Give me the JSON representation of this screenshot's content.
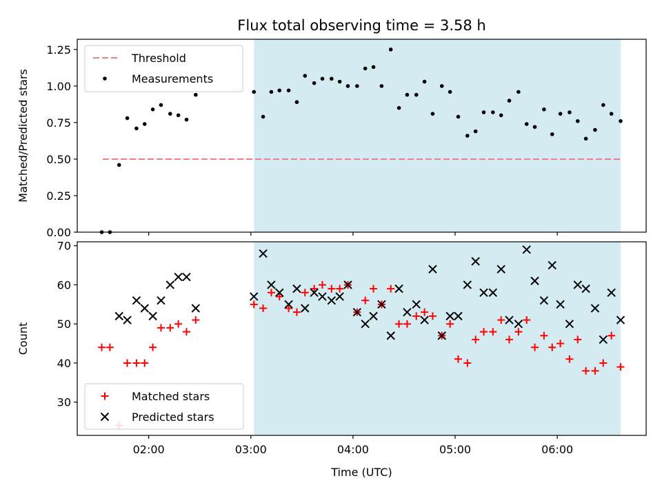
{
  "chart_data": {
    "type": "scatter",
    "title": "Flux total observing time = 3.58 h",
    "xlabel": "Time (UTC)",
    "x_ticks": [
      "02:00",
      "03:00",
      "04:00",
      "05:00",
      "06:00"
    ],
    "x_tick_values": [
      2.0,
      3.0,
      4.0,
      5.0,
      6.0
    ],
    "xlim": [
      1.3,
      6.87
    ],
    "shaded_region": {
      "x_start": 3.03,
      "x_end": 6.62,
      "color": "#d4ebf1"
    },
    "panels": [
      {
        "ylabel": "Matched/Predicted stars",
        "ylim": [
          0.0,
          1.32
        ],
        "y_ticks": [
          0.0,
          0.25,
          0.5,
          0.75,
          1.0,
          1.25
        ],
        "y_tick_labels": [
          "0.00",
          "0.25",
          "0.50",
          "0.75",
          "1.00",
          "1.25"
        ],
        "legend_placement": "top-left",
        "series": [
          {
            "name": "Threshold",
            "kind": "dashed-line",
            "color": "#f08080",
            "x": [
              1.55,
              6.62
            ],
            "y": [
              0.5,
              0.5
            ]
          },
          {
            "name": "Measurements",
            "kind": "dot",
            "color": "#000000",
            "x": [
              1.54,
              1.62,
              1.71,
              1.79,
              1.88,
              1.96,
              2.04,
              2.12,
              2.21,
              2.29,
              2.37,
              2.46,
              3.03,
              3.12,
              3.2,
              3.28,
              3.37,
              3.45,
              3.53,
              3.62,
              3.7,
              3.79,
              3.87,
              3.95,
              4.04,
              4.12,
              4.2,
              4.28,
              4.37,
              4.45,
              4.53,
              4.62,
              4.7,
              4.78,
              4.87,
              4.95,
              5.03,
              5.12,
              5.2,
              5.28,
              5.37,
              5.45,
              5.53,
              5.62,
              5.7,
              5.78,
              5.87,
              5.95,
              6.03,
              6.12,
              6.2,
              6.28,
              6.37,
              6.45,
              6.53,
              6.62
            ],
            "y": [
              0.0,
              0.0,
              0.46,
              0.78,
              0.71,
              0.74,
              0.84,
              0.87,
              0.81,
              0.8,
              0.77,
              0.94,
              0.96,
              0.79,
              0.96,
              0.97,
              0.97,
              0.89,
              1.07,
              1.02,
              1.05,
              1.05,
              1.03,
              1.0,
              1.0,
              1.12,
              1.13,
              1.0,
              1.25,
              0.85,
              0.94,
              0.94,
              1.03,
              0.81,
              1.0,
              0.96,
              0.79,
              0.66,
              0.69,
              0.82,
              0.82,
              0.8,
              0.9,
              0.96,
              0.74,
              0.72,
              0.84,
              0.67,
              0.81,
              0.82,
              0.76,
              0.64,
              0.7,
              0.87,
              0.81,
              0.76
            ]
          }
        ]
      },
      {
        "ylabel": "Count",
        "ylim": [
          21.5,
          71.0
        ],
        "y_ticks": [
          30,
          40,
          50,
          60,
          70
        ],
        "y_tick_labels": [
          "30",
          "40",
          "50",
          "60",
          "70"
        ],
        "legend_placement": "bottom-left",
        "series": [
          {
            "name": "Matched stars",
            "kind": "plus",
            "color": "#ff0000",
            "x": [
              1.54,
              1.62,
              1.71,
              1.79,
              1.88,
              1.96,
              2.04,
              2.12,
              2.21,
              2.29,
              2.37,
              2.46,
              3.03,
              3.12,
              3.2,
              3.28,
              3.37,
              3.45,
              3.53,
              3.62,
              3.7,
              3.79,
              3.87,
              3.95,
              4.04,
              4.12,
              4.2,
              4.28,
              4.37,
              4.45,
              4.53,
              4.62,
              4.7,
              4.78,
              4.87,
              4.95,
              5.03,
              5.12,
              5.2,
              5.28,
              5.37,
              5.45,
              5.53,
              5.62,
              5.7,
              5.78,
              5.87,
              5.95,
              6.03,
              6.12,
              6.2,
              6.28,
              6.37,
              6.45,
              6.53,
              6.62
            ],
            "y": [
              44,
              44,
              24,
              40,
              40,
              40,
              44,
              49,
              49,
              50,
              48,
              51,
              55,
              54,
              58,
              57,
              54,
              53,
              58,
              59,
              60,
              59,
              59,
              60,
              53,
              56,
              59,
              55,
              59,
              50,
              50,
              52,
              53,
              52,
              47,
              50,
              41,
              40,
              46,
              48,
              48,
              51,
              46,
              48,
              51,
              44,
              47,
              44,
              45,
              41,
              46,
              38,
              38,
              40,
              47,
              39
            ]
          },
          {
            "name": "Predicted stars",
            "kind": "x",
            "color": "#000000",
            "x": [
              1.71,
              1.79,
              1.88,
              1.96,
              2.04,
              2.12,
              2.21,
              2.29,
              2.37,
              2.46,
              3.03,
              3.12,
              3.2,
              3.28,
              3.37,
              3.45,
              3.53,
              3.62,
              3.7,
              3.79,
              3.87,
              3.95,
              4.04,
              4.12,
              4.2,
              4.28,
              4.37,
              4.45,
              4.53,
              4.62,
              4.7,
              4.78,
              4.87,
              4.95,
              5.03,
              5.12,
              5.2,
              5.28,
              5.37,
              5.45,
              5.53,
              5.62,
              5.7,
              5.78,
              5.87,
              5.95,
              6.03,
              6.12,
              6.2,
              6.28,
              6.37,
              6.45,
              6.53,
              6.62
            ],
            "y": [
              52,
              51,
              56,
              54,
              52,
              56,
              60,
              62,
              62,
              54,
              57,
              68,
              60,
              58,
              55,
              59,
              54,
              58,
              57,
              56,
              57,
              60,
              53,
              50,
              52,
              55,
              47,
              59,
              53,
              55,
              51,
              64,
              47,
              52,
              52,
              60,
              66,
              58,
              58,
              64,
              51,
              50,
              69,
              61,
              56,
              65,
              55,
              50,
              60,
              59,
              54,
              46,
              58,
              51
            ]
          }
        ]
      }
    ]
  }
}
